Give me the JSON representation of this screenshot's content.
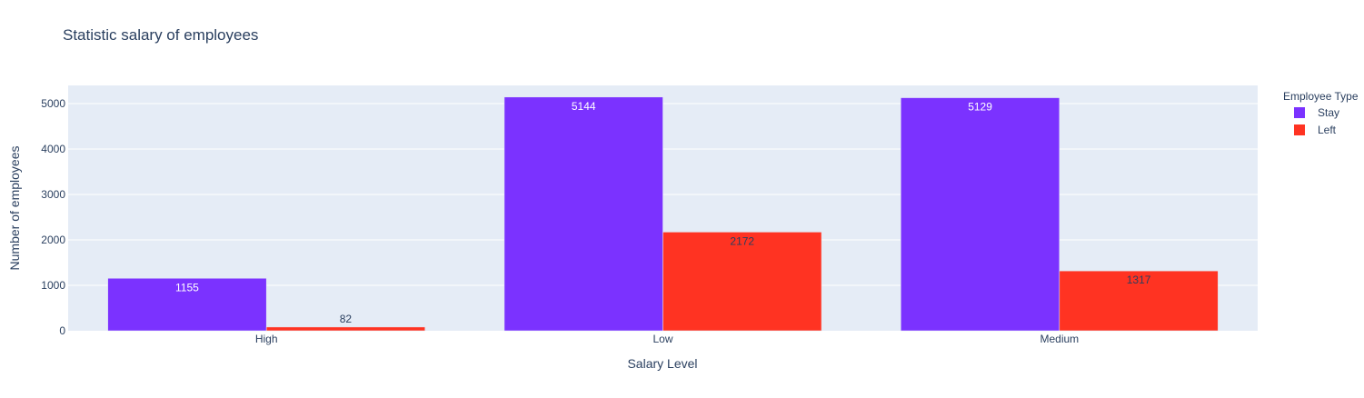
{
  "chart_data": {
    "type": "bar",
    "title": "Statistic salary of employees",
    "xlabel": "Salary Level",
    "ylabel": "Number of employees",
    "categories": [
      "High",
      "Low",
      "Medium"
    ],
    "series": [
      {
        "name": "Stay",
        "values": [
          1155,
          5144,
          5129
        ],
        "color": "#7b32ff"
      },
      {
        "name": "Left",
        "values": [
          82,
          2172,
          1317
        ],
        "color": "#ff3322"
      }
    ],
    "ylim": [
      0,
      5400
    ],
    "yticks": [
      0,
      1000,
      2000,
      3000,
      4000,
      5000
    ],
    "legend_title": "Employee Type",
    "legend_position": "top-right",
    "grid": true,
    "background": "#e5ecf6"
  }
}
